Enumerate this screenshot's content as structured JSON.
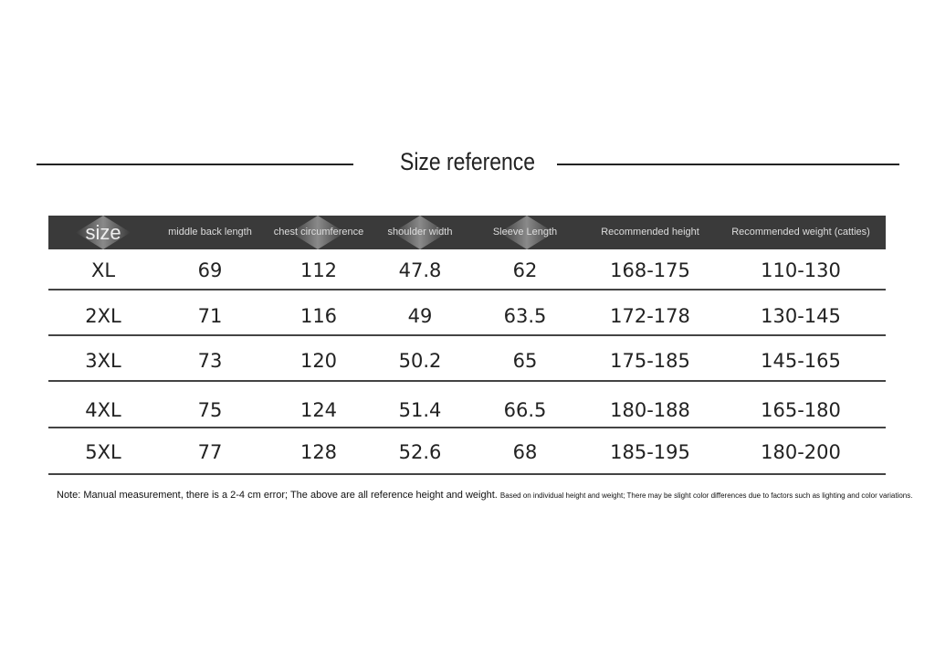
{
  "header": {
    "title": "Size reference"
  },
  "table": {
    "columns": [
      "size",
      "middle back length",
      "chest circumference",
      "shoulder width",
      "Sleeve Length",
      "Recommended height",
      "Recommended weight (catties)"
    ],
    "rows": [
      [
        "XL",
        "69",
        "112",
        "47.8",
        "62",
        "168-175",
        "110-130"
      ],
      [
        "2XL",
        "71",
        "116",
        "49",
        "63.5",
        "172-178",
        "130-145"
      ],
      [
        "3XL",
        "73",
        "120",
        "50.2",
        "65",
        "175-185",
        "145-165"
      ],
      [
        "4XL",
        "75",
        "124",
        "51.4",
        "66.5",
        "180-188",
        "165-180"
      ],
      [
        "5XL",
        "77",
        "128",
        "52.6",
        "68",
        "185-195",
        "180-200"
      ]
    ]
  },
  "note": {
    "main": "Note: Manual measurement, there is a 2-4 cm error; The above are all reference height and weight.",
    "detail": "Based on individual height and weight; There may be slight color differences due to factors such as lighting and color variations."
  }
}
